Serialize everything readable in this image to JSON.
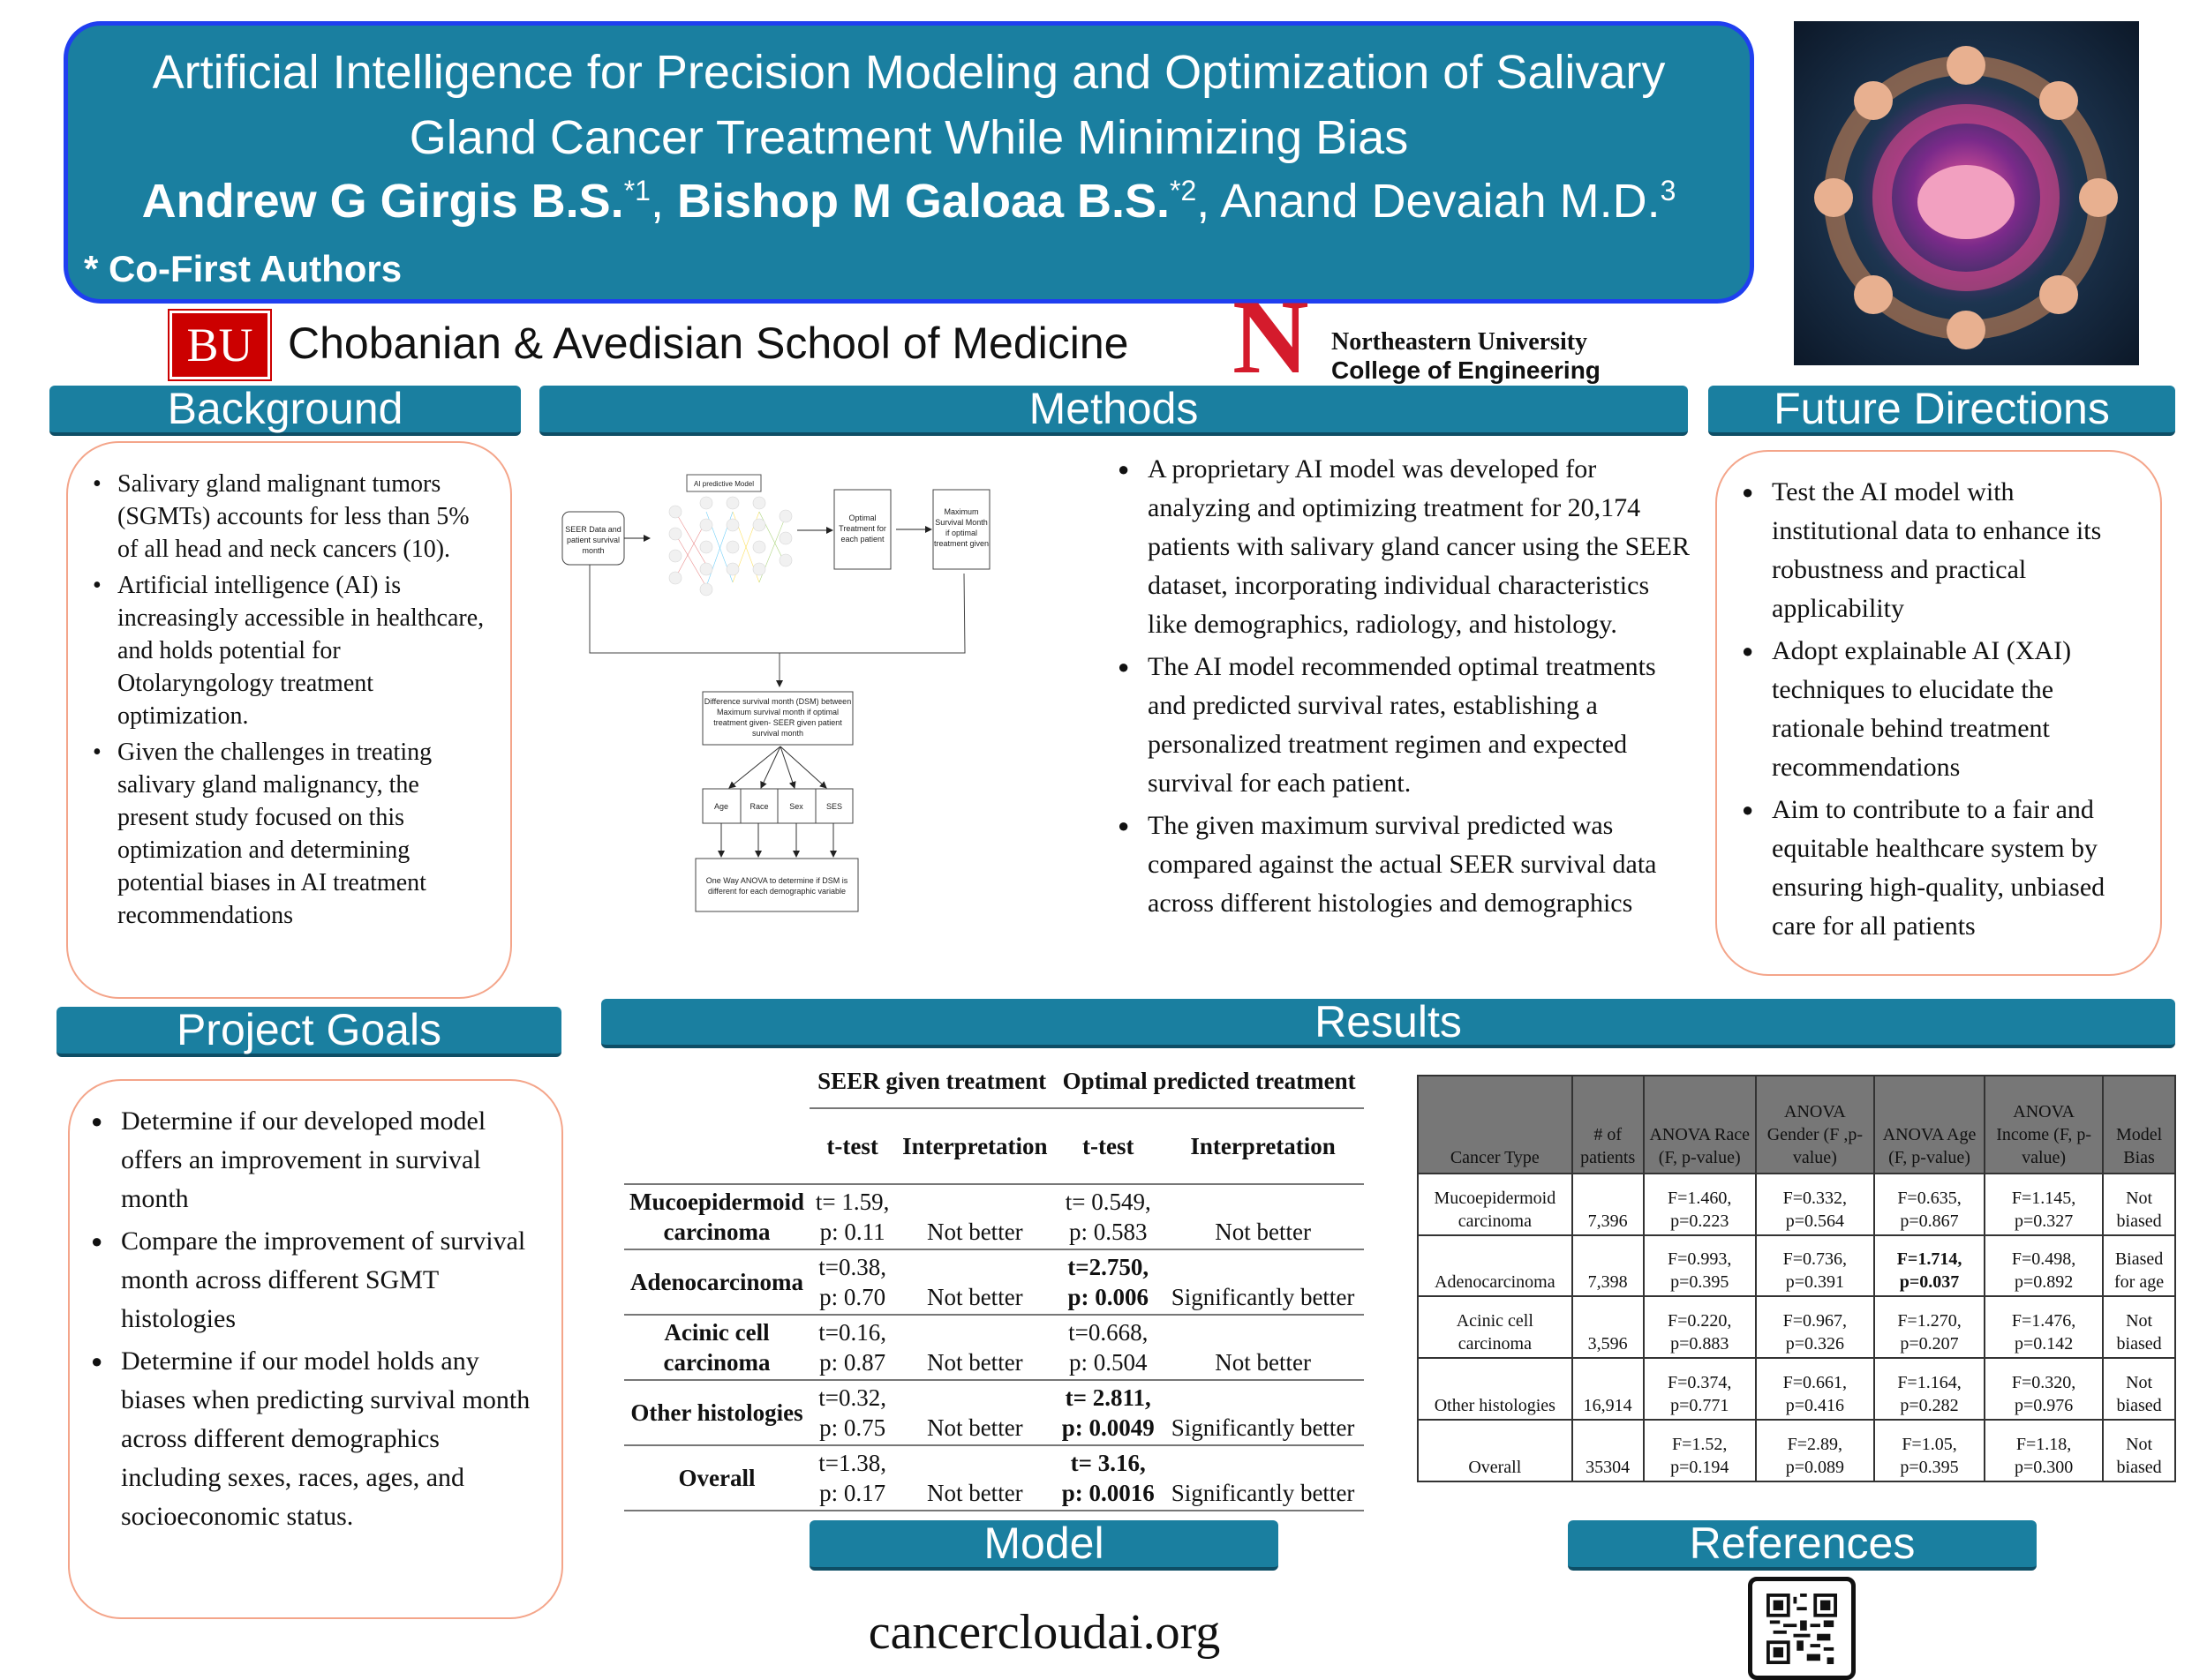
{
  "header": {
    "title_line1": "Artificial Intelligence for Precision Modeling and Optimization of Salivary",
    "title_line2": "Gland Cancer Treatment While Minimizing Bias",
    "author1": "Andrew G Girgis B.S.",
    "author1_sup": "*1",
    "author2": "Bishop M Galoaa B.S.",
    "author2_sup": "*2",
    "author3": "Anand Devaiah M.D.",
    "author3_sup": "3",
    "cofirst": "* Co-First Authors"
  },
  "logos": {
    "bu_mark": "BU",
    "bu_school": "Chobanian & Avedisian School of Medicine",
    "neu_mark": "N",
    "neu_line1": "Northeastern University",
    "neu_line2": "College of Engineering"
  },
  "sections": {
    "background": "Background",
    "methods": "Methods",
    "future": "Future Directions",
    "goals": "Project Goals",
    "results": "Results",
    "model": "Model",
    "references": "References"
  },
  "background_items": [
    "Salivary gland malignant tumors (SGMTs) accounts for less than 5% of all head and neck cancers (10).",
    "Artificial intelligence (AI) is increasingly accessible in healthcare, and holds potential for Otolaryngology treatment optimization.",
    "Given the challenges in treating salivary gland malignancy, the present study focused on this optimization and determining potential biases in AI treatment recommendations"
  ],
  "goals_items": [
    "Determine if our developed model offers an improvement in survival month",
    "Compare the improvement of survival month across different SGMT histologies",
    "Determine if our model holds any biases when predicting survival month across different demographics including sexes, races, ages, and socioeconomic status."
  ],
  "methods_items": [
    "A proprietary AI model was developed for analyzing and optimizing treatment for 20,174 patients with salivary gland cancer using the SEER dataset, incorporating individual characteristics like demographics, radiology, and histology.",
    "The AI model recommended optimal treatments and predicted survival rates, establishing a personalized treatment regimen and expected survival for each patient.",
    "The given maximum survival predicted was compared against the actual SEER survival data across different histologies and demographics"
  ],
  "future_items": [
    "Test the AI model with institutional data to enhance its robustness and practical applicability",
    "Adopt explainable AI (XAI) techniques to elucidate the rationale behind treatment recommendations",
    "Aim to contribute to a fair and equitable healthcare system by ensuring high-quality, unbiased care for all patients"
  ],
  "flowchart": {
    "seer": [
      "SEER Data and",
      "patient survival",
      "month"
    ],
    "ai_label": "AI predictive Model",
    "optimal": [
      "Optimal",
      "Treatment for",
      "each patient"
    ],
    "maximum": [
      "Maximum",
      "Survival Month",
      "if optimal",
      "treatment given"
    ],
    "dsm": [
      "Difference survival month (DSM) between",
      "Maximum survival month if optimal",
      "treatment given- SEER given patient",
      "survival month"
    ],
    "demographics": [
      "Age",
      "Race",
      "Sex",
      "SES"
    ],
    "anova": [
      "One Way ANOVA to determine if DSM is",
      "different for each demographic variable"
    ]
  },
  "ttest_table": {
    "group_headers": [
      "SEER given treatment",
      "Optimal predicted treatment"
    ],
    "sub_headers": [
      "t-test",
      "Interpretation",
      "t-test",
      "Interpretation"
    ],
    "rows": [
      {
        "name": "Mucoepidermoid carcinoma",
        "seer_t": "t= 1.59,",
        "seer_p": "p: 0.11",
        "seer_interp": "Not better",
        "opt_t": "t= 0.549,",
        "opt_p": "p: 0.583",
        "opt_interp": "Not better",
        "bold": false
      },
      {
        "name": "Adenocarcinoma",
        "seer_t": "t=0.38,",
        "seer_p": "p: 0.70",
        "seer_interp": "Not better",
        "opt_t": "t=2.750,",
        "opt_p": "p: 0.006",
        "opt_interp": "Significantly better",
        "bold": true
      },
      {
        "name": "Acinic cell carcinoma",
        "seer_t": "t=0.16,",
        "seer_p": "p: 0.87",
        "seer_interp": "Not better",
        "opt_t": "t=0.668,",
        "opt_p": "p: 0.504",
        "opt_interp": "Not better",
        "bold": false
      },
      {
        "name": "Other histologies",
        "seer_t": "t=0.32,",
        "seer_p": "p: 0.75",
        "seer_interp": "Not better",
        "opt_t": "t= 2.811,",
        "opt_p": "p: 0.0049",
        "opt_interp": "Significantly better",
        "bold": true
      },
      {
        "name": "Overall",
        "seer_t": "t=1.38,",
        "seer_p": "p: 0.17",
        "seer_interp": "Not better",
        "opt_t": "t= 3.16,",
        "opt_p": "p: 0.0016",
        "opt_interp": "Significantly better",
        "bold": true
      }
    ]
  },
  "anova_table": {
    "headers": [
      "Cancer Type",
      "# of patients",
      "ANOVA Race (F, p-value)",
      "ANOVA Gender (F ,p-value)",
      "ANOVA Age (F, p-value)",
      "ANOVA Income (F, p-value)",
      "Model Bias"
    ],
    "rows": [
      [
        "Mucoepidermoid carcinoma",
        "7,396",
        "F=1.460, p=0.223",
        "F=0.332, p=0.564",
        "F=0.635, p=0.867",
        "F=1.145, p=0.327",
        "Not biased"
      ],
      [
        "Adenocarcinoma",
        "7,398",
        "F=0.993, p=0.395",
        "F=0.736, p=0.391",
        "F=1.714, p=0.037",
        "F=0.498, p=0.892",
        "Biased for age"
      ],
      [
        "Acinic cell carcinoma",
        "3,596",
        "F=0.220, p=0.883",
        "F=0.967, p=0.326",
        "F=1.270, p=0.207",
        "F=1.476, p=0.142",
        "Not biased"
      ],
      [
        "Other histologies",
        "16,914",
        "F=0.374, p=0.771",
        "F=0.661, p=0.416",
        "F=1.164, p=0.282",
        "F=0.320, p=0.976",
        "Not biased"
      ],
      [
        "Overall",
        "35304",
        "F=1.52, p=0.194",
        "F=2.89, p=0.089",
        "F=1.05, p=0.395",
        "F=1.18, p=0.300",
        "Not biased"
      ]
    ]
  },
  "website": "cancercloudai.org",
  "colors": {
    "section_header": "#1a7fa0",
    "title_border": "#1f3ff0",
    "box_border": "#f4a58a",
    "bu_red": "#cc0000",
    "neu_red": "#d41b2c"
  }
}
